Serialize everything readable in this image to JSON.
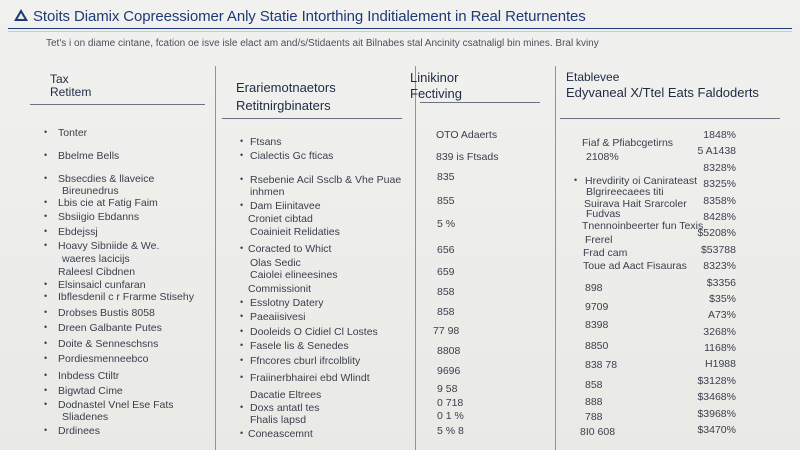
{
  "header": {
    "title": "Stoits Diamix Copreessiomer Anly Statie Intorthing Inditialement in Real Returnentes",
    "subtitle": "Tet's i on diame cintane, fcation oe isve isle elact am and/s/Stidaents ait Bilnabes stal Ancinity csatnaligl bin mines. Bral kviny"
  },
  "columns": {
    "c1": {
      "heading_line1": "Tax",
      "heading_line2": "Retitem"
    },
    "c2": {
      "heading_line1": "Erariemotnaetors",
      "heading_line2": "Retitnirgbinaters"
    },
    "c3": {
      "heading_line1": "Linikinor",
      "heading_line2": "Fectiving"
    },
    "c4": {
      "heading_line1": "Etablevee",
      "heading_line2": "Edyvaneal X/Ttel Eats Faldoderts"
    }
  },
  "col1_items": [
    "Tonter",
    "Bbelme Bells",
    "Sbsecdies & llaveice",
    "Bireunedrus",
    "Lbis cie at Fatig Faim",
    "Sbsiigio Ebdanns",
    "Ebdejssj",
    "Hoavy Sibniide & We.",
    "waeres lacicijs",
    "Raleesl Cibdnen",
    "Elsinsaicl cunfaran",
    "Ibflesdenil c r Frarme Stisehy",
    "Drobses Bustis 8058",
    "Dreen Galbante Putes",
    "Doite & Senneschsns",
    "Pordiesmenneebco",
    "Inbdess Ctiltr",
    "Bigwtad Cime",
    "Dodnastel Vnel Ese Fats",
    "Sliadenes",
    "Drdinees"
  ],
  "col2_items": [
    "Ftsans",
    "Cialectis Gc fticas",
    "Rsebenie Acil Ssclb & Vhe Puae",
    "inhmen",
    "Dam Eiinitavee",
    "Croniet cibtad",
    "Coainieit Relidaties",
    "Coracted to Whict",
    "Olas Sedic",
    "Caiolei elineesines",
    "Commissionit",
    "Esslotny Datery",
    "Paeaiisivesi",
    "Dooleids O Cidiel Cl Lostes",
    "Fasele lis & Senedes",
    "Ffncores cburl ifrcolblity",
    "Fraiinerbhairei ebd Wlindt",
    "Dacatie Eltrees",
    "Doxs antatl tes",
    "Fhalis lapsd",
    "Coneascemnt"
  ],
  "col3_values": [
    "OTO Adaerts",
    "839 is Ftsads",
    "835",
    "855",
    "5 %",
    "656",
    "659",
    "858",
    "858",
    "77 98",
    "8808",
    "9696",
    "9 58",
    "0 718",
    "0 1 %",
    "5 % 8"
  ],
  "col4_left": [
    "Fiaf & Pfiabcgetirns",
    "2108%",
    "Hrevdirity oi Canirateast",
    "Blgrireecaees titi",
    "Suirava Hait Srarcoler",
    "Fudvas",
    "Tnennoinbeerter fun Texis",
    "Frerel",
    "Frad cam",
    "Toue ad Aact Fisauras",
    "898",
    "9709",
    "8398",
    "8850",
    "838 78",
    "858",
    "888",
    "788",
    "8I0 608"
  ],
  "col4_right": [
    "1848%",
    "5 A1438",
    "8328%",
    "8325%",
    "8358%",
    "8428%",
    "$5208%",
    "$53788",
    "8323%",
    "$3356",
    "$35%",
    "A73%",
    "3268%",
    "1168%",
    "H1988",
    "$3128%",
    "$3468%",
    "$3968%",
    "$3470%"
  ],
  "colors": {
    "title": "#1f3a78",
    "text": "#3a3f4b",
    "rule": "#8f939c"
  }
}
